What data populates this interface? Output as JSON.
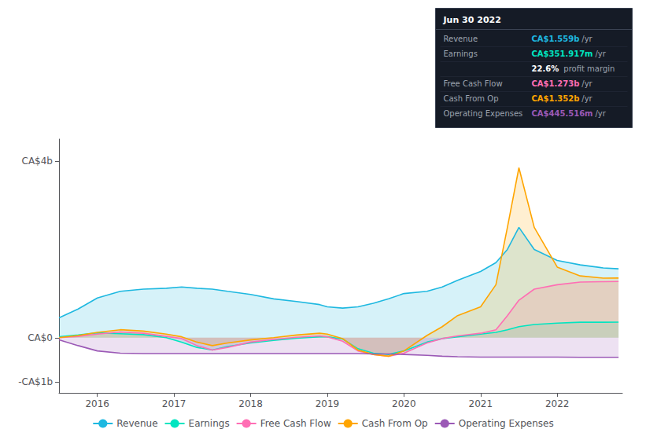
{
  "chart_data": {
    "type": "area",
    "x": [
      2015.5,
      2015.75,
      2016.0,
      2016.3,
      2016.6,
      2016.9,
      2017.1,
      2017.3,
      2017.5,
      2017.7,
      2018.0,
      2018.3,
      2018.6,
      2018.9,
      2019.0,
      2019.2,
      2019.4,
      2019.6,
      2019.8,
      2020.0,
      2020.3,
      2020.5,
      2020.7,
      2021.0,
      2021.2,
      2021.35,
      2021.5,
      2021.7,
      2022.0,
      2022.3,
      2022.6,
      2022.8
    ],
    "series": [
      {
        "name": "Revenue",
        "color": "#1eb8e0",
        "values": [
          450000000,
          650000000,
          900000000,
          1050000000,
          1100000000,
          1120000000,
          1150000000,
          1120000000,
          1100000000,
          1050000000,
          980000000,
          880000000,
          820000000,
          750000000,
          700000000,
          670000000,
          700000000,
          780000000,
          880000000,
          1000000000,
          1050000000,
          1150000000,
          1300000000,
          1500000000,
          1700000000,
          2000000000,
          2500000000,
          2000000000,
          1750000000,
          1650000000,
          1580000000,
          1560000000
        ]
      },
      {
        "name": "Earnings",
        "color": "#00e5c0",
        "values": [
          20000000,
          60000000,
          110000000,
          90000000,
          70000000,
          0,
          -100000000,
          -220000000,
          -280000000,
          -200000000,
          -120000000,
          -60000000,
          -10000000,
          20000000,
          20000000,
          -30000000,
          -250000000,
          -350000000,
          -380000000,
          -300000000,
          -100000000,
          -20000000,
          20000000,
          80000000,
          120000000,
          180000000,
          250000000,
          300000000,
          330000000,
          350000000,
          350000000,
          352000000
        ]
      },
      {
        "name": "Free Cash Flow",
        "color": "#ff6eb4",
        "values": [
          0,
          30000000,
          80000000,
          130000000,
          100000000,
          30000000,
          -20000000,
          -180000000,
          -280000000,
          -220000000,
          -100000000,
          -40000000,
          10000000,
          40000000,
          20000000,
          -80000000,
          -300000000,
          -380000000,
          -420000000,
          -350000000,
          -120000000,
          -20000000,
          40000000,
          100000000,
          180000000,
          500000000,
          850000000,
          1100000000,
          1200000000,
          1260000000,
          1270000000,
          1273000000
        ]
      },
      {
        "name": "Cash From Op",
        "color": "#ffa500",
        "values": [
          0,
          50000000,
          120000000,
          180000000,
          150000000,
          80000000,
          20000000,
          -100000000,
          -180000000,
          -120000000,
          -50000000,
          0,
          60000000,
          100000000,
          80000000,
          -20000000,
          -280000000,
          -380000000,
          -420000000,
          -300000000,
          50000000,
          250000000,
          500000000,
          700000000,
          1200000000,
          2500000000,
          3850000000,
          2500000000,
          1600000000,
          1400000000,
          1350000000,
          1352000000
        ]
      },
      {
        "name": "Operating Expenses",
        "color": "#9b59b6",
        "values": [
          -50000000,
          -180000000,
          -300000000,
          -350000000,
          -360000000,
          -360000000,
          -360000000,
          -360000000,
          -360000000,
          -360000000,
          -360000000,
          -360000000,
          -360000000,
          -360000000,
          -360000000,
          -360000000,
          -360000000,
          -370000000,
          -370000000,
          -380000000,
          -400000000,
          -420000000,
          -430000000,
          -440000000,
          -440000000,
          -440000000,
          -440000000,
          -440000000,
          -440000000,
          -445000000,
          -445000000,
          -445000000
        ]
      }
    ],
    "xlim": [
      2015.5,
      2022.85
    ],
    "xticks": [
      2016,
      2017,
      2018,
      2019,
      2020,
      2021,
      2022
    ],
    "ylim": [
      -1250000000,
      4500000000
    ],
    "yticks": [
      {
        "value": -1000000000,
        "label": "-CA$1b"
      },
      {
        "value": 0,
        "label": "CA$0"
      },
      {
        "value": 4000000000,
        "label": "CA$4b"
      }
    ],
    "grid": false,
    "legend": "bottom",
    "annotations": {
      "title": "Jun 30 2022",
      "rows": [
        {
          "label": "Revenue",
          "text": "CA$1.559b",
          "suffix": "/yr",
          "color": "#1eb8e0"
        },
        {
          "label": "Earnings",
          "text": "CA$351.917m",
          "suffix": "/yr",
          "color": "#00e5c0"
        },
        {
          "text": "22.6%",
          "suffix": " profit margin",
          "color": "white"
        },
        {
          "label": "Free Cash Flow",
          "text": "CA$1.273b",
          "suffix": "/yr",
          "color": "#ff6eb4"
        },
        {
          "label": "Cash From Op",
          "text": "CA$1.352b",
          "suffix": "/yr",
          "color": "#ffa500"
        },
        {
          "label": "Operating Expenses",
          "text": "CA$445.516m",
          "suffix": "/yr",
          "color": "#9b59b6"
        }
      ]
    }
  }
}
